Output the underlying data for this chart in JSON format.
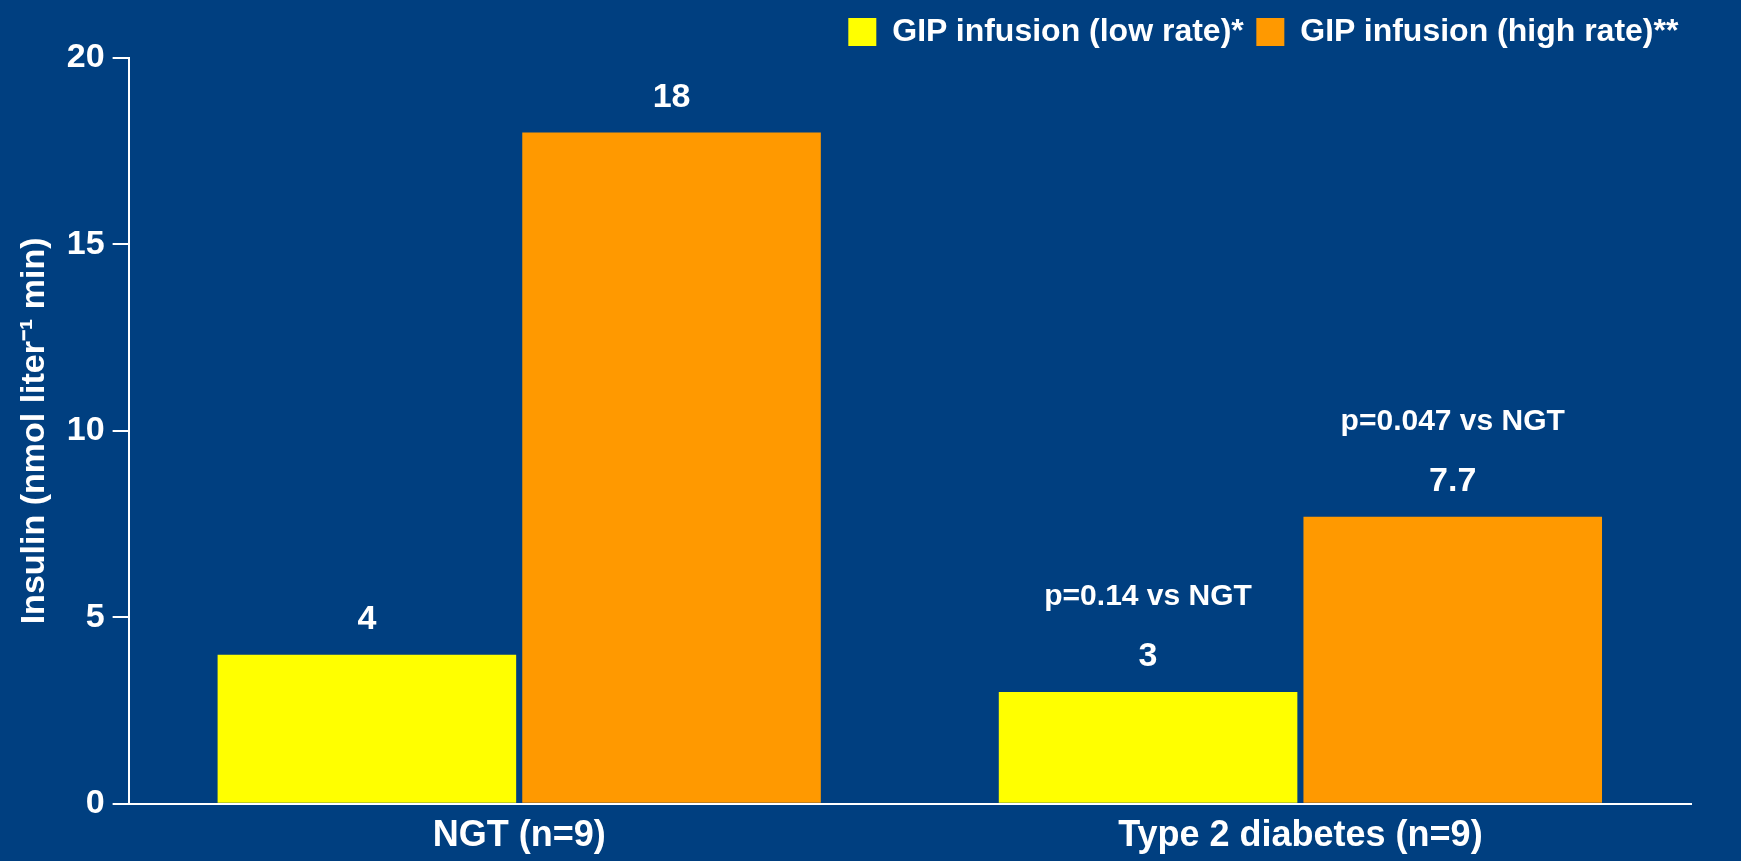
{
  "chart_data": {
    "type": "bar",
    "ylabel": "Insulin (nmol liter⁻¹ min)",
    "categories": [
      "NGT (n=9)",
      "Type 2 diabetes (n=9)"
    ],
    "series": [
      {
        "name": "GIP infusion (low rate)*",
        "color": "#ffff00",
        "values": [
          4,
          3
        ]
      },
      {
        "name": "GIP infusion (high rate)**",
        "color": "#ff9900",
        "values": [
          18,
          7.7
        ]
      }
    ],
    "ylim": [
      0,
      20
    ],
    "yticks": [
      0,
      5,
      10,
      15,
      20
    ],
    "grid": false,
    "legend": "top right",
    "data_labels": true,
    "annotations": [
      "p=0.14 vs NGT",
      "p=0.047 vs NGT"
    ]
  }
}
